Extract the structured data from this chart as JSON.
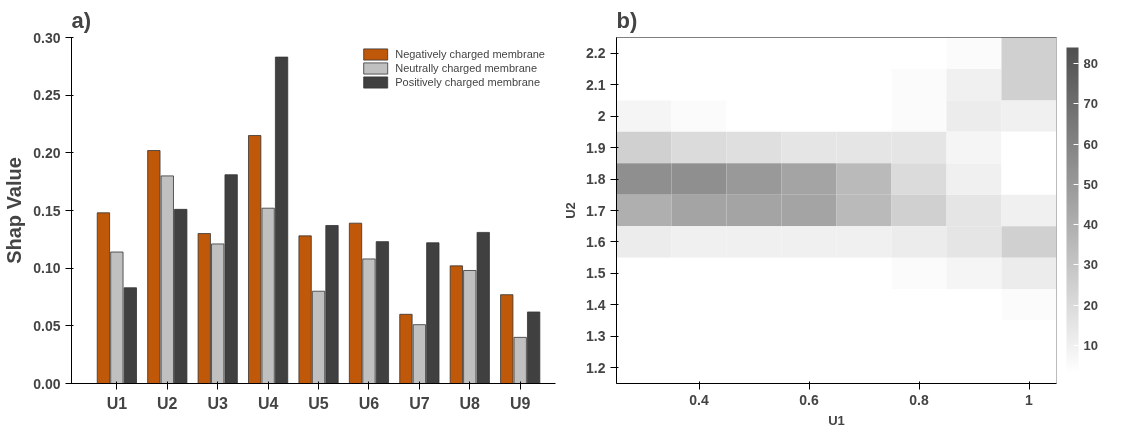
{
  "chart_data": [
    {
      "type": "bar",
      "title": "a)",
      "ylabel": "Shap Value",
      "categories": [
        "U1",
        "U2",
        "U3",
        "U4",
        "U5",
        "U6",
        "U7",
        "U8",
        "U9"
      ],
      "series": [
        {
          "name": "Negatively charged membrane",
          "color": "#c0580a",
          "values": [
            0.148,
            0.202,
            0.13,
            0.215,
            0.128,
            0.139,
            0.06,
            0.102,
            0.077
          ]
        },
        {
          "name": "Neutrally charged membrane",
          "color": "#c0c0c0",
          "values": [
            0.114,
            0.18,
            0.121,
            0.152,
            0.08,
            0.108,
            0.051,
            0.098,
            0.04
          ]
        },
        {
          "name": "Positively charged membrane",
          "color": "#404040",
          "values": [
            0.083,
            0.151,
            0.181,
            0.283,
            0.137,
            0.123,
            0.122,
            0.131,
            0.062
          ]
        }
      ],
      "ylim": [
        0,
        0.3
      ],
      "yticks": [
        {
          "value": 0,
          "label": "0.00"
        },
        {
          "value": 0.05,
          "label": "0.05"
        },
        {
          "value": 0.1,
          "label": "0.10"
        },
        {
          "value": 0.15,
          "label": "0.15"
        },
        {
          "value": 0.2,
          "label": "0.20"
        },
        {
          "value": 0.25,
          "label": "0.25"
        },
        {
          "value": 0.3,
          "label": "0.30"
        }
      ],
      "grid": false,
      "legend": "top right"
    },
    {
      "type": "heatmap",
      "title": "b)",
      "xlabel": "U1",
      "ylabel": "U2",
      "categories": [
        null,
        "0.4",
        null,
        "0.6",
        null,
        "0.8",
        null,
        "1"
      ],
      "y_categories": [
        "2.2",
        "2.1",
        "2",
        "1.9",
        "1.8",
        "1.7",
        "1.6",
        "1.5",
        "1.4",
        "1.3",
        "1.2"
      ],
      "clim": [
        3,
        84
      ],
      "cticks": [
        10,
        20,
        30,
        40,
        50,
        60,
        70,
        80
      ],
      "cells": [
        [
          3,
          3,
          3,
          3,
          3,
          3,
          5,
          25
        ],
        [
          3,
          3,
          3,
          3,
          3,
          5,
          10,
          25
        ],
        [
          8,
          5,
          3,
          3,
          3,
          5,
          12,
          10
        ],
        [
          25,
          20,
          18,
          15,
          15,
          15,
          8,
          3
        ],
        [
          55,
          55,
          50,
          45,
          35,
          20,
          10,
          3
        ],
        [
          40,
          45,
          45,
          45,
          35,
          25,
          15,
          10
        ],
        [
          12,
          10,
          10,
          10,
          10,
          12,
          15,
          25
        ],
        [
          3,
          3,
          3,
          3,
          3,
          5,
          8,
          12
        ],
        [
          3,
          3,
          3,
          3,
          3,
          3,
          3,
          5
        ],
        [
          3,
          3,
          3,
          3,
          3,
          3,
          3,
          3
        ],
        [
          3,
          3,
          3,
          3,
          3,
          3,
          3,
          3
        ]
      ]
    }
  ]
}
